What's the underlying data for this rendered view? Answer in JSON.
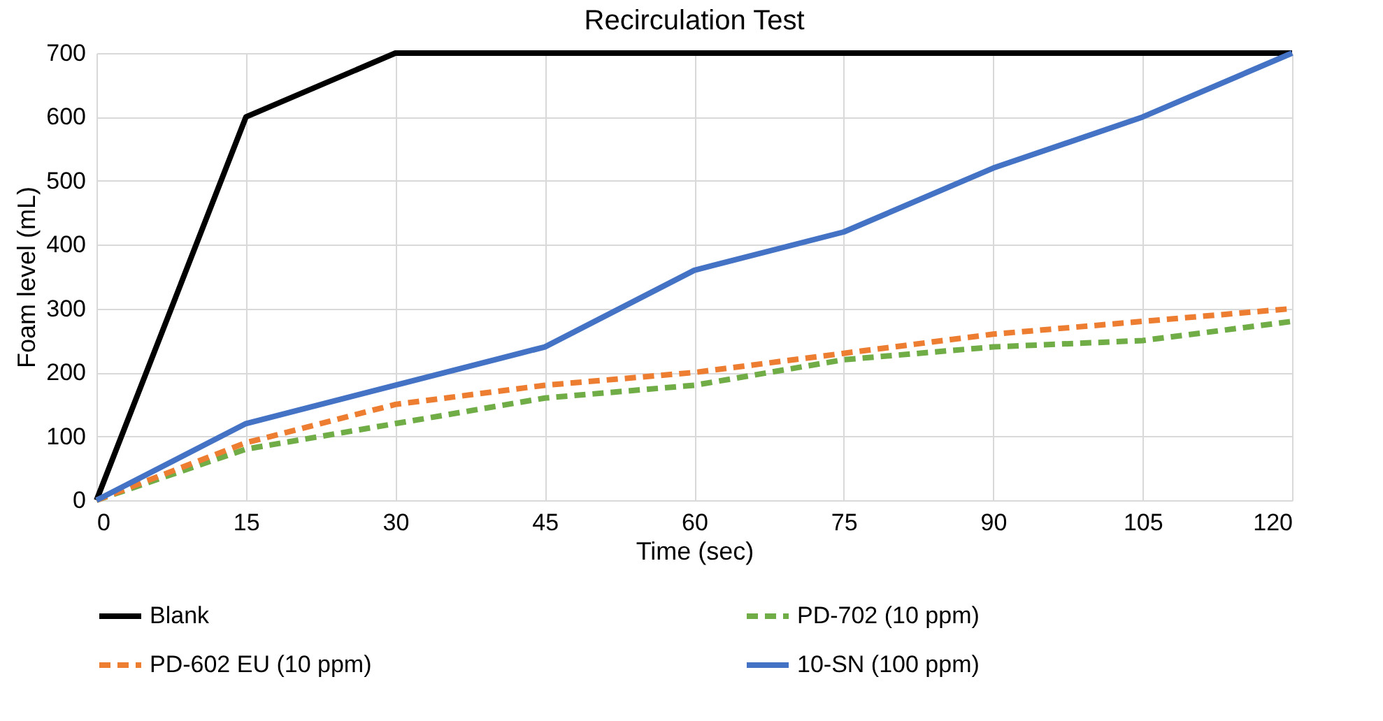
{
  "chart_data": {
    "type": "line",
    "title": "Recirculation Test",
    "xlabel": "Time (sec)",
    "ylabel": "Foam level (mL)",
    "x": [
      0,
      15,
      30,
      45,
      60,
      75,
      90,
      105,
      120
    ],
    "series": [
      {
        "name": "Blank",
        "color": "#000000",
        "line_style": "solid",
        "values": [
          0,
          600,
          700,
          700,
          700,
          700,
          700,
          700,
          700
        ]
      },
      {
        "name": "PD-702 (10 ppm)",
        "color": "#70ad47",
        "line_style": "dashed",
        "values": [
          0,
          80,
          120,
          160,
          180,
          220,
          240,
          250,
          280
        ]
      },
      {
        "name": "PD-602 EU (10 ppm)",
        "color": "#ed7d31",
        "line_style": "dashed",
        "values": [
          0,
          90,
          150,
          180,
          200,
          230,
          260,
          280,
          300
        ]
      },
      {
        "name": "10-SN (100 ppm)",
        "color": "#4472c4",
        "line_style": "solid",
        "values": [
          0,
          120,
          180,
          240,
          360,
          420,
          520,
          600,
          700
        ]
      }
    ],
    "xlim": [
      0,
      120
    ],
    "xticks": [
      0,
      15,
      30,
      45,
      60,
      75,
      90,
      105,
      120
    ],
    "ylim": [
      0,
      700
    ],
    "yticks": [
      0,
      100,
      200,
      300,
      400,
      500,
      600,
      700
    ],
    "grid": true,
    "legend": "bottom"
  }
}
